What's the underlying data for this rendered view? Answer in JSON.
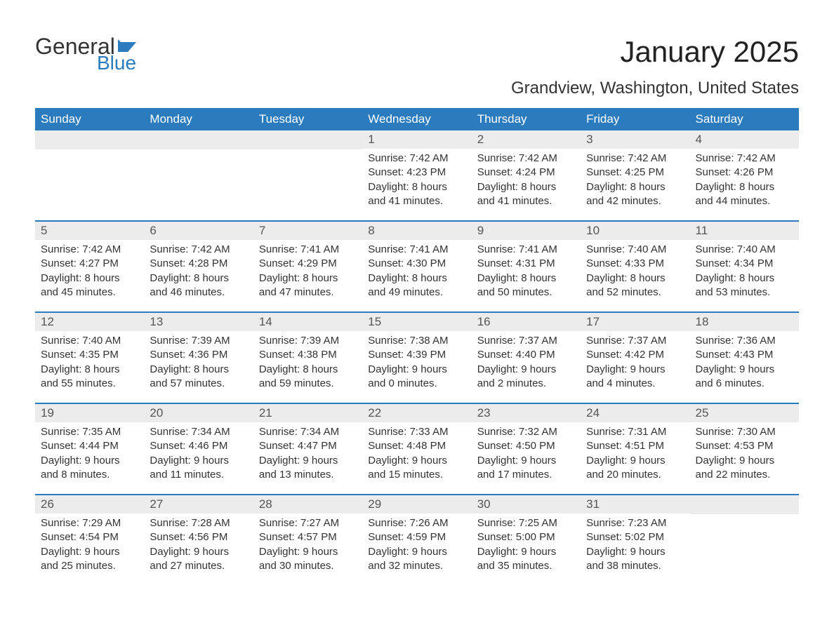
{
  "logo": {
    "general": "General",
    "blue": "Blue",
    "flag_color": "#2b7bbf"
  },
  "title": "January 2025",
  "location": "Grandview, Washington, United States",
  "colors": {
    "header_bg": "#2b7bbf",
    "header_text": "#ffffff",
    "daynum_bg": "#ececec",
    "daynum_text": "#555555",
    "body_text": "#333333",
    "page_bg": "#ffffff"
  },
  "weekdays": [
    "Sunday",
    "Monday",
    "Tuesday",
    "Wednesday",
    "Thursday",
    "Friday",
    "Saturday"
  ],
  "weeks": [
    [
      {
        "empty": true
      },
      {
        "empty": true
      },
      {
        "empty": true
      },
      {
        "day": "1",
        "sunrise": "Sunrise: 7:42 AM",
        "sunset": "Sunset: 4:23 PM",
        "daylight1": "Daylight: 8 hours",
        "daylight2": "and 41 minutes."
      },
      {
        "day": "2",
        "sunrise": "Sunrise: 7:42 AM",
        "sunset": "Sunset: 4:24 PM",
        "daylight1": "Daylight: 8 hours",
        "daylight2": "and 41 minutes."
      },
      {
        "day": "3",
        "sunrise": "Sunrise: 7:42 AM",
        "sunset": "Sunset: 4:25 PM",
        "daylight1": "Daylight: 8 hours",
        "daylight2": "and 42 minutes."
      },
      {
        "day": "4",
        "sunrise": "Sunrise: 7:42 AM",
        "sunset": "Sunset: 4:26 PM",
        "daylight1": "Daylight: 8 hours",
        "daylight2": "and 44 minutes."
      }
    ],
    [
      {
        "day": "5",
        "sunrise": "Sunrise: 7:42 AM",
        "sunset": "Sunset: 4:27 PM",
        "daylight1": "Daylight: 8 hours",
        "daylight2": "and 45 minutes."
      },
      {
        "day": "6",
        "sunrise": "Sunrise: 7:42 AM",
        "sunset": "Sunset: 4:28 PM",
        "daylight1": "Daylight: 8 hours",
        "daylight2": "and 46 minutes."
      },
      {
        "day": "7",
        "sunrise": "Sunrise: 7:41 AM",
        "sunset": "Sunset: 4:29 PM",
        "daylight1": "Daylight: 8 hours",
        "daylight2": "and 47 minutes."
      },
      {
        "day": "8",
        "sunrise": "Sunrise: 7:41 AM",
        "sunset": "Sunset: 4:30 PM",
        "daylight1": "Daylight: 8 hours",
        "daylight2": "and 49 minutes."
      },
      {
        "day": "9",
        "sunrise": "Sunrise: 7:41 AM",
        "sunset": "Sunset: 4:31 PM",
        "daylight1": "Daylight: 8 hours",
        "daylight2": "and 50 minutes."
      },
      {
        "day": "10",
        "sunrise": "Sunrise: 7:40 AM",
        "sunset": "Sunset: 4:33 PM",
        "daylight1": "Daylight: 8 hours",
        "daylight2": "and 52 minutes."
      },
      {
        "day": "11",
        "sunrise": "Sunrise: 7:40 AM",
        "sunset": "Sunset: 4:34 PM",
        "daylight1": "Daylight: 8 hours",
        "daylight2": "and 53 minutes."
      }
    ],
    [
      {
        "day": "12",
        "sunrise": "Sunrise: 7:40 AM",
        "sunset": "Sunset: 4:35 PM",
        "daylight1": "Daylight: 8 hours",
        "daylight2": "and 55 minutes."
      },
      {
        "day": "13",
        "sunrise": "Sunrise: 7:39 AM",
        "sunset": "Sunset: 4:36 PM",
        "daylight1": "Daylight: 8 hours",
        "daylight2": "and 57 minutes."
      },
      {
        "day": "14",
        "sunrise": "Sunrise: 7:39 AM",
        "sunset": "Sunset: 4:38 PM",
        "daylight1": "Daylight: 8 hours",
        "daylight2": "and 59 minutes."
      },
      {
        "day": "15",
        "sunrise": "Sunrise: 7:38 AM",
        "sunset": "Sunset: 4:39 PM",
        "daylight1": "Daylight: 9 hours",
        "daylight2": "and 0 minutes."
      },
      {
        "day": "16",
        "sunrise": "Sunrise: 7:37 AM",
        "sunset": "Sunset: 4:40 PM",
        "daylight1": "Daylight: 9 hours",
        "daylight2": "and 2 minutes."
      },
      {
        "day": "17",
        "sunrise": "Sunrise: 7:37 AM",
        "sunset": "Sunset: 4:42 PM",
        "daylight1": "Daylight: 9 hours",
        "daylight2": "and 4 minutes."
      },
      {
        "day": "18",
        "sunrise": "Sunrise: 7:36 AM",
        "sunset": "Sunset: 4:43 PM",
        "daylight1": "Daylight: 9 hours",
        "daylight2": "and 6 minutes."
      }
    ],
    [
      {
        "day": "19",
        "sunrise": "Sunrise: 7:35 AM",
        "sunset": "Sunset: 4:44 PM",
        "daylight1": "Daylight: 9 hours",
        "daylight2": "and 8 minutes."
      },
      {
        "day": "20",
        "sunrise": "Sunrise: 7:34 AM",
        "sunset": "Sunset: 4:46 PM",
        "daylight1": "Daylight: 9 hours",
        "daylight2": "and 11 minutes."
      },
      {
        "day": "21",
        "sunrise": "Sunrise: 7:34 AM",
        "sunset": "Sunset: 4:47 PM",
        "daylight1": "Daylight: 9 hours",
        "daylight2": "and 13 minutes."
      },
      {
        "day": "22",
        "sunrise": "Sunrise: 7:33 AM",
        "sunset": "Sunset: 4:48 PM",
        "daylight1": "Daylight: 9 hours",
        "daylight2": "and 15 minutes."
      },
      {
        "day": "23",
        "sunrise": "Sunrise: 7:32 AM",
        "sunset": "Sunset: 4:50 PM",
        "daylight1": "Daylight: 9 hours",
        "daylight2": "and 17 minutes."
      },
      {
        "day": "24",
        "sunrise": "Sunrise: 7:31 AM",
        "sunset": "Sunset: 4:51 PM",
        "daylight1": "Daylight: 9 hours",
        "daylight2": "and 20 minutes."
      },
      {
        "day": "25",
        "sunrise": "Sunrise: 7:30 AM",
        "sunset": "Sunset: 4:53 PM",
        "daylight1": "Daylight: 9 hours",
        "daylight2": "and 22 minutes."
      }
    ],
    [
      {
        "day": "26",
        "sunrise": "Sunrise: 7:29 AM",
        "sunset": "Sunset: 4:54 PM",
        "daylight1": "Daylight: 9 hours",
        "daylight2": "and 25 minutes."
      },
      {
        "day": "27",
        "sunrise": "Sunrise: 7:28 AM",
        "sunset": "Sunset: 4:56 PM",
        "daylight1": "Daylight: 9 hours",
        "daylight2": "and 27 minutes."
      },
      {
        "day": "28",
        "sunrise": "Sunrise: 7:27 AM",
        "sunset": "Sunset: 4:57 PM",
        "daylight1": "Daylight: 9 hours",
        "daylight2": "and 30 minutes."
      },
      {
        "day": "29",
        "sunrise": "Sunrise: 7:26 AM",
        "sunset": "Sunset: 4:59 PM",
        "daylight1": "Daylight: 9 hours",
        "daylight2": "and 32 minutes."
      },
      {
        "day": "30",
        "sunrise": "Sunrise: 7:25 AM",
        "sunset": "Sunset: 5:00 PM",
        "daylight1": "Daylight: 9 hours",
        "daylight2": "and 35 minutes."
      },
      {
        "day": "31",
        "sunrise": "Sunrise: 7:23 AM",
        "sunset": "Sunset: 5:02 PM",
        "daylight1": "Daylight: 9 hours",
        "daylight2": "and 38 minutes."
      },
      {
        "empty": true
      }
    ]
  ]
}
